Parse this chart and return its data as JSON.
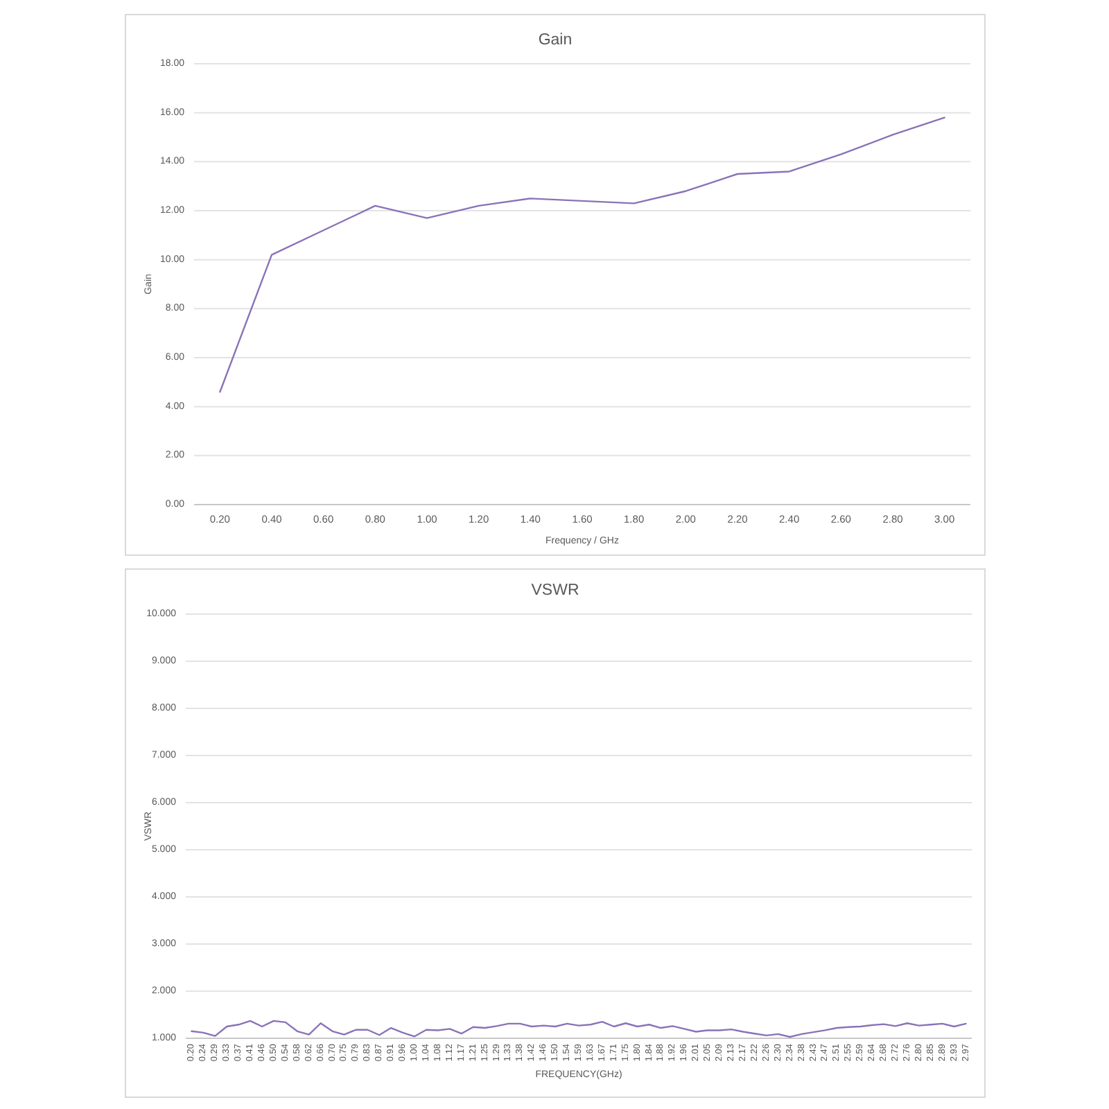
{
  "chart_data": [
    {
      "type": "line",
      "title": "Gain",
      "xlabel": "Frequency / GHz",
      "ylabel": "Gain",
      "categories": [
        "0.20",
        "0.40",
        "0.60",
        "0.80",
        "1.00",
        "1.20",
        "1.40",
        "1.60",
        "1.80",
        "2.00",
        "2.20",
        "2.40",
        "2.60",
        "2.80",
        "3.00"
      ],
      "values": [
        4.6,
        10.2,
        11.2,
        12.2,
        11.7,
        12.2,
        12.5,
        12.4,
        12.3,
        12.8,
        13.5,
        13.6,
        14.3,
        15.1,
        15.8
      ],
      "color": "#8a72b8",
      "ylim": [
        0,
        18
      ],
      "yticks": [
        {
          "value": 0,
          "label": "0.00"
        },
        {
          "value": 2,
          "label": "2.00"
        },
        {
          "value": 4,
          "label": "4.00"
        },
        {
          "value": 6,
          "label": "6.00"
        },
        {
          "value": 8,
          "label": "8.00"
        },
        {
          "value": 10,
          "label": "10.00"
        },
        {
          "value": 12,
          "label": "12.00"
        },
        {
          "value": 14,
          "label": "14.00"
        },
        {
          "value": 16,
          "label": "16.00"
        },
        {
          "value": 18,
          "label": "18.00"
        }
      ],
      "grid": "y"
    },
    {
      "type": "line",
      "title": "VSWR",
      "xlabel": "FREQUENCY(GHz)",
      "ylabel": "VSWR",
      "categories": [
        "0.20",
        "0.24",
        "0.29",
        "0.33",
        "0.37",
        "0.41",
        "0.46",
        "0.50",
        "0.54",
        "0.58",
        "0.62",
        "0.66",
        "0.70",
        "0.75",
        "0.79",
        "0.83",
        "0.87",
        "0.91",
        "0.96",
        "1.00",
        "1.04",
        "1.08",
        "1.12",
        "1.17",
        "1.21",
        "1.25",
        "1.29",
        "1.33",
        "1.38",
        "1.42",
        "1.46",
        "1.50",
        "1.54",
        "1.59",
        "1.63",
        "1.67",
        "1.71",
        "1.75",
        "1.80",
        "1.84",
        "1.88",
        "1.92",
        "1.96",
        "2.01",
        "2.05",
        "2.09",
        "2.13",
        "2.17",
        "2.22",
        "2.26",
        "2.30",
        "2.34",
        "2.38",
        "2.43",
        "2.47",
        "2.51",
        "2.55",
        "2.59",
        "2.64",
        "2.68",
        "2.72",
        "2.76",
        "2.80",
        "2.85",
        "2.89",
        "2.93",
        "2.97"
      ],
      "values": [
        1.15,
        1.12,
        1.05,
        1.25,
        1.29,
        1.37,
        1.25,
        1.37,
        1.34,
        1.15,
        1.08,
        1.32,
        1.15,
        1.08,
        1.18,
        1.18,
        1.07,
        1.22,
        1.12,
        1.04,
        1.18,
        1.17,
        1.2,
        1.1,
        1.24,
        1.22,
        1.26,
        1.31,
        1.31,
        1.25,
        1.27,
        1.25,
        1.31,
        1.27,
        1.29,
        1.35,
        1.25,
        1.32,
        1.25,
        1.29,
        1.22,
        1.26,
        1.2,
        1.14,
        1.17,
        1.17,
        1.19,
        1.14,
        1.1,
        1.06,
        1.09,
        1.03,
        1.09,
        1.13,
        1.17,
        1.22,
        1.24,
        1.25,
        1.28,
        1.3,
        1.26,
        1.32,
        1.27,
        1.29,
        1.31,
        1.25,
        1.31
      ],
      "color": "#8a72b8",
      "ylim": [
        1,
        10
      ],
      "yticks": [
        {
          "value": 1,
          "label": "1.000"
        },
        {
          "value": 2,
          "label": "2.000"
        },
        {
          "value": 3,
          "label": "3.000"
        },
        {
          "value": 4,
          "label": "4.000"
        },
        {
          "value": 5,
          "label": "5.000"
        },
        {
          "value": 6,
          "label": "6.000"
        },
        {
          "value": 7,
          "label": "7.000"
        },
        {
          "value": 8,
          "label": "8.000"
        },
        {
          "value": 9,
          "label": "9.000"
        },
        {
          "value": 10,
          "label": "10.000"
        }
      ],
      "grid": "y"
    }
  ]
}
